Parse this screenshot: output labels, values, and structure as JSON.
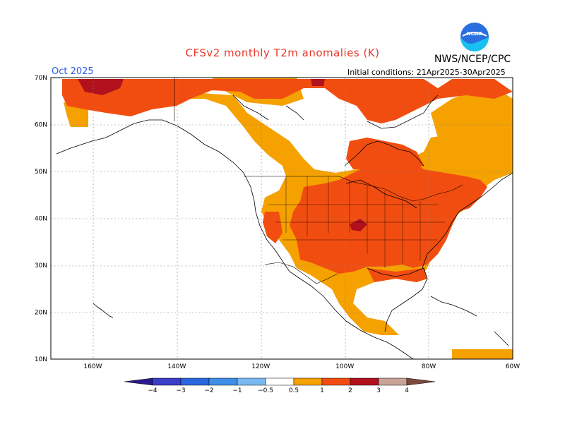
{
  "header": {
    "title": "CFSv2 monthly T2m anomalies (K)",
    "month": "Oct 2025",
    "agency": "NWS/NCEP/CPC",
    "initial_conditions": "Initial conditions: 21Apr2025-30Apr2025",
    "logo_text": "NOAA"
  },
  "map": {
    "lat_labels": [
      "70N",
      "60N",
      "50N",
      "40N",
      "30N",
      "20N",
      "10N"
    ],
    "lon_labels": [
      "160W",
      "140W",
      "120W",
      "100W",
      "80W",
      "60W"
    ],
    "lat_values": [
      70,
      60,
      50,
      40,
      30,
      20,
      10
    ],
    "lon_values": [
      -160,
      -140,
      -120,
      -100,
      -80,
      -60
    ]
  },
  "colorbar": {
    "labels": [
      "-4",
      "-3",
      "-2",
      "-1",
      "-0.5",
      "0.5",
      "1",
      "2",
      "3",
      "4"
    ],
    "bins": [
      {
        "range": "< -4",
        "color": "#2c1a8c"
      },
      {
        "range": "-4 to -3",
        "color": "#3b3ec8"
      },
      {
        "range": "-3 to -2",
        "color": "#2a66dd"
      },
      {
        "range": "-2 to -1",
        "color": "#3f8ee8"
      },
      {
        "range": "-1 to -0.5",
        "color": "#7ab8f2"
      },
      {
        "range": "-0.5 to 0.5",
        "color": "#ffffff"
      },
      {
        "range": "0.5 to 1",
        "color": "#f5a100"
      },
      {
        "range": "1 to 2",
        "color": "#f24d10"
      },
      {
        "range": "2 to 3",
        "color": "#b0111d"
      },
      {
        "range": "3 to 4",
        "color": "#c9a398"
      },
      {
        "range": "> 4",
        "color": "#7c4a3d"
      }
    ]
  },
  "colors": {
    "weak_warm": "#f5a100",
    "warm": "#f24d10",
    "strong_warm": "#b0111d"
  }
}
